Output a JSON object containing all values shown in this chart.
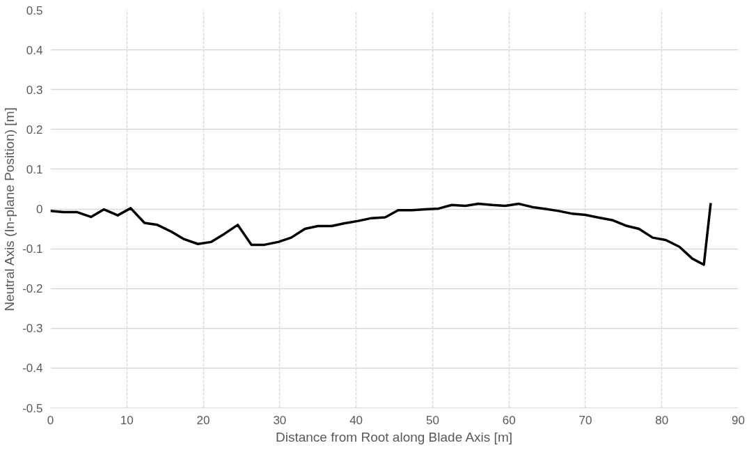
{
  "chart_data": {
    "type": "line",
    "xlabel": "Distance from Root along Blade Axis [m]",
    "ylabel": "Neutral Axis (In-plane Position) [m]",
    "x": [
      0,
      1.7,
      3.5,
      5.3,
      7,
      8.8,
      10.5,
      12.3,
      14,
      15.8,
      17.5,
      19.3,
      21,
      22.8,
      24.5,
      26.3,
      28,
      29.8,
      31.5,
      33.3,
      35,
      36.8,
      38.5,
      40.3,
      42,
      43.8,
      45.5,
      47.3,
      49,
      50.8,
      52.5,
      54.3,
      56,
      57.8,
      59.5,
      61.3,
      63,
      64.8,
      66.5,
      68.3,
      70,
      71.8,
      73.5,
      75.3,
      77,
      78.8,
      80.5,
      82.3,
      84,
      85.5,
      86.4
    ],
    "series": [
      {
        "color": "#000000",
        "values": [
          -0.005,
          -0.008,
          -0.008,
          -0.02,
          -0.001,
          -0.016,
          0.002,
          -0.035,
          -0.04,
          -0.057,
          -0.076,
          -0.088,
          -0.083,
          -0.062,
          -0.04,
          -0.09,
          -0.09,
          -0.083,
          -0.072,
          -0.05,
          -0.043,
          -0.043,
          -0.036,
          -0.03,
          -0.023,
          -0.021,
          -0.003,
          -0.003,
          -0.001,
          0.001,
          0.01,
          0.008,
          0.013,
          0.01,
          0.008,
          0.013,
          0.005,
          0.0,
          -0.005,
          -0.012,
          -0.015,
          -0.022,
          -0.028,
          -0.042,
          -0.05,
          -0.072,
          -0.078,
          -0.095,
          -0.125,
          -0.14,
          0.015
        ]
      }
    ],
    "xlim": [
      0,
      90
    ],
    "xticks": [
      0,
      10,
      20,
      30,
      40,
      50,
      60,
      70,
      80,
      90
    ],
    "ylim": [
      -0.5,
      0.5
    ],
    "yticks": [
      {
        "value": -0.5,
        "label": "-0.5"
      },
      {
        "value": -0.4,
        "label": "-0.4"
      },
      {
        "value": -0.3,
        "label": "-0.3"
      },
      {
        "value": -0.2,
        "label": "-0.2"
      },
      {
        "value": -0.1,
        "label": "-0.1"
      },
      0,
      {
        "value": 0.1,
        "label": "0.1"
      },
      {
        "value": 0.2,
        "label": "0.2"
      },
      {
        "value": 0.3,
        "label": "0.3"
      },
      {
        "value": 0.4,
        "label": "0.4"
      },
      {
        "value": 0.5,
        "label": "0.5"
      }
    ],
    "grid": true,
    "marker": "none",
    "line_style": "solid"
  }
}
